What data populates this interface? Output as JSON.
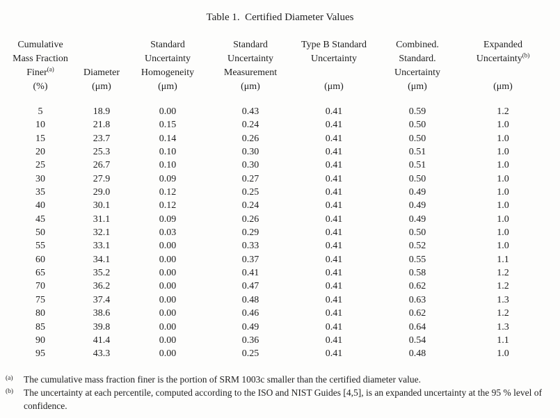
{
  "title": "Table 1.  Certified Diameter Values",
  "table": {
    "header": {
      "columns": [
        {
          "name": "cumulative-mass-fraction-finer",
          "lines": [
            {
              "text": "Cumulative"
            },
            {
              "text": "Mass Fraction"
            },
            {
              "text": "Finer",
              "sup": "(a)"
            },
            {
              "text": "(%)"
            }
          ]
        },
        {
          "name": "diameter",
          "lines": [
            {
              "text": ""
            },
            {
              "text": ""
            },
            {
              "text": "Diameter"
            },
            {
              "text": "(μm)"
            }
          ]
        },
        {
          "name": "standard-uncertainty-homogeneity",
          "lines": [
            {
              "text": "Standard"
            },
            {
              "text": "Uncertainty"
            },
            {
              "text": "Homogeneity"
            },
            {
              "text": "(μm)"
            }
          ]
        },
        {
          "name": "standard-uncertainty-measurement",
          "lines": [
            {
              "text": "Standard"
            },
            {
              "text": "Uncertainty"
            },
            {
              "text": "Measurement"
            },
            {
              "text": "(μm)"
            }
          ]
        },
        {
          "name": "type-b-standard-uncertainty",
          "lines": [
            {
              "text": "Type B Standard"
            },
            {
              "text": "Uncertainty"
            },
            {
              "text": ""
            },
            {
              "text": "(μm)"
            }
          ]
        },
        {
          "name": "combined-standard-uncertainty",
          "lines": [
            {
              "text": "Combined."
            },
            {
              "text": "Standard."
            },
            {
              "text": "Uncertainty"
            },
            {
              "text": "(μm)"
            }
          ]
        },
        {
          "name": "expanded-uncertainty",
          "lines": [
            {
              "text": "Expanded"
            },
            {
              "text": "Uncertainty",
              "sup": "(b)"
            },
            {
              "text": ""
            },
            {
              "text": "(μm)"
            }
          ]
        }
      ]
    },
    "rows": [
      [
        "5",
        "18.9",
        "0.00",
        "0.43",
        "0.41",
        "0.59",
        "1.2"
      ],
      [
        "10",
        "21.8",
        "0.15",
        "0.24",
        "0.41",
        "0.50",
        "1.0"
      ],
      [
        "15",
        "23.7",
        "0.14",
        "0.26",
        "0.41",
        "0.50",
        "1.0"
      ],
      [
        "20",
        "25.3",
        "0.10",
        "0.30",
        "0.41",
        "0.51",
        "1.0"
      ],
      [
        "25",
        "26.7",
        "0.10",
        "0.30",
        "0.41",
        "0.51",
        "1.0"
      ],
      [
        "30",
        "27.9",
        "0.09",
        "0.27",
        "0.41",
        "0.50",
        "1.0"
      ],
      [
        "35",
        "29.0",
        "0.12",
        "0.25",
        "0.41",
        "0.49",
        "1.0"
      ],
      [
        "40",
        "30.1",
        "0.12",
        "0.24",
        "0.41",
        "0.49",
        "1.0"
      ],
      [
        "45",
        "31.1",
        "0.09",
        "0.26",
        "0.41",
        "0.49",
        "1.0"
      ],
      [
        "50",
        "32.1",
        "0.03",
        "0.29",
        "0.41",
        "0.50",
        "1.0"
      ],
      [
        "55",
        "33.1",
        "0.00",
        "0.33",
        "0.41",
        "0.52",
        "1.0"
      ],
      [
        "60",
        "34.1",
        "0.00",
        "0.37",
        "0.41",
        "0.55",
        "1.1"
      ],
      [
        "65",
        "35.2",
        "0.00",
        "0.41",
        "0.41",
        "0.58",
        "1.2"
      ],
      [
        "70",
        "36.2",
        "0.00",
        "0.47",
        "0.41",
        "0.62",
        "1.2"
      ],
      [
        "75",
        "37.4",
        "0.00",
        "0.48",
        "0.41",
        "0.63",
        "1.3"
      ],
      [
        "80",
        "38.6",
        "0.00",
        "0.46",
        "0.41",
        "0.62",
        "1.2"
      ],
      [
        "85",
        "39.8",
        "0.00",
        "0.49",
        "0.41",
        "0.64",
        "1.3"
      ],
      [
        "90",
        "41.4",
        "0.00",
        "0.36",
        "0.41",
        "0.54",
        "1.1"
      ],
      [
        "95",
        "43.3",
        "0.00",
        "0.25",
        "0.41",
        "0.48",
        "1.0"
      ]
    ]
  },
  "footnotes": [
    {
      "marker": "(a)",
      "text": "The cumulative mass fraction finer is the portion of SRM 1003c smaller than the certified diameter value."
    },
    {
      "marker": "(b)",
      "text": "The uncertainty at each percentile, computed according to the ISO and NIST Guides [4,5], is an expanded uncertainty at the 95 % level of confidence."
    }
  ]
}
